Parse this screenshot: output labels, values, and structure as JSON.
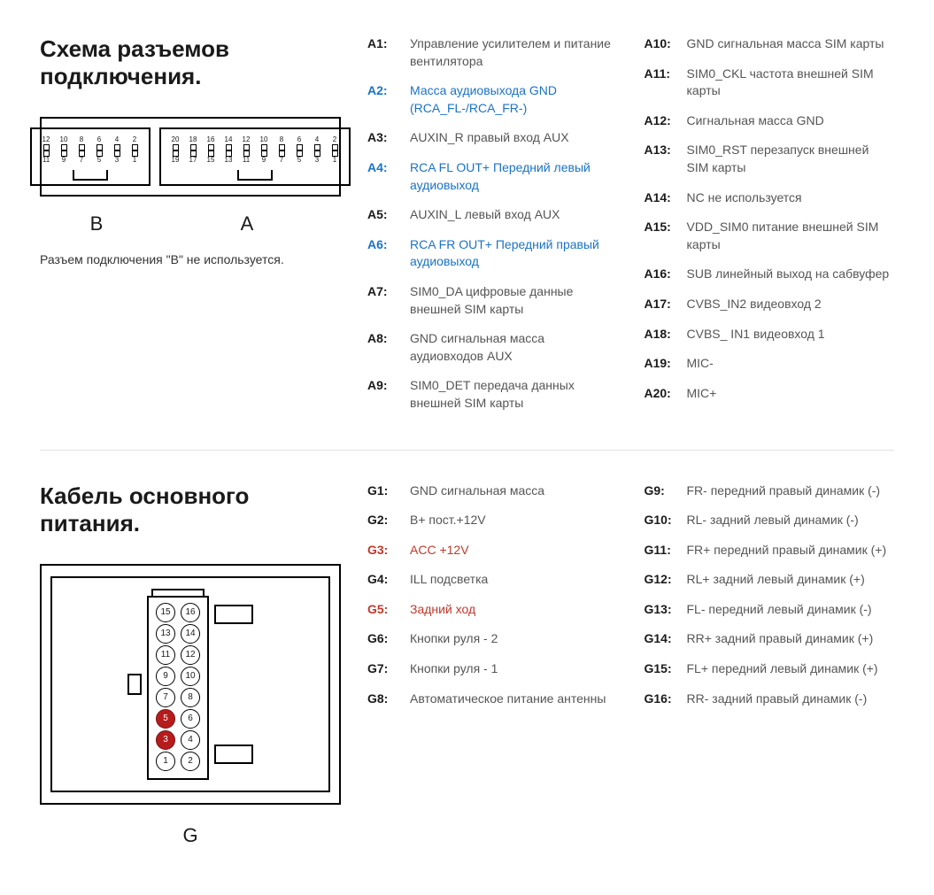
{
  "section1": {
    "title": "Схема разъемов подключения.",
    "connectorB": {
      "label": "B",
      "row_top": [
        "12",
        "10",
        "8",
        "6",
        "4",
        "2"
      ],
      "row_bottom": [
        "11",
        "9",
        "7",
        "5",
        "3",
        "1"
      ]
    },
    "connectorA": {
      "label": "A",
      "row_top": [
        "20",
        "18",
        "16",
        "14",
        "12",
        "10",
        "8",
        "6",
        "4",
        "2"
      ],
      "row_bottom": [
        "19",
        "17",
        "15",
        "13",
        "11",
        "9",
        "7",
        "5",
        "3",
        "1"
      ]
    },
    "note": "Разъем подключения \"B\" не используется.",
    "pins_col1": [
      {
        "k": "A1:",
        "d": "Управление усилителем и питание вентилятора",
        "c": ""
      },
      {
        "k": "A2:",
        "d": "Масса аудиовыхода GND (RCA_FL-/RCA_FR-)",
        "c": "blue"
      },
      {
        "k": "A3:",
        "d": "AUXIN_R правый вход AUX",
        "c": ""
      },
      {
        "k": "A4:",
        "d": "RCA FL OUT+  Передний левый аудиовыход",
        "c": "blue"
      },
      {
        "k": "A5:",
        "d": "AUXIN_L левый вход AUX",
        "c": ""
      },
      {
        "k": "A6:",
        "d": "RCA FR OUT+  Передний правый аудиовыход",
        "c": "blue"
      },
      {
        "k": "A7:",
        "d": "SIM0_DA цифровые данные внешней SIM карты",
        "c": ""
      },
      {
        "k": "A8:",
        "d": "GND сигнальная масса аудиовходов AUX",
        "c": ""
      },
      {
        "k": "A9:",
        "d": "SIM0_DET передача данных внешней SIM карты",
        "c": ""
      }
    ],
    "pins_col2": [
      {
        "k": "A10:",
        "d": "GND сигнальная масса SIM карты",
        "c": ""
      },
      {
        "k": "A11:",
        "d": "SIM0_CKL частота внешней SIM карты",
        "c": ""
      },
      {
        "k": "A12:",
        "d": "Сигнальная масса GND",
        "c": ""
      },
      {
        "k": "A13:",
        "d": "SIM0_RST перезапуск внешней SIM карты",
        "c": ""
      },
      {
        "k": "A14:",
        "d": "NC  не используется",
        "c": ""
      },
      {
        "k": "A15:",
        "d": "VDD_SIM0 питание внешней SIM карты",
        "c": ""
      },
      {
        "k": "A16:",
        "d": "SUB линейный выход на сабвуфер",
        "c": ""
      },
      {
        "k": "A17:",
        "d": "CVBS_IN2 видеовход 2",
        "c": ""
      },
      {
        "k": "A18:",
        "d": "CVBS_ IN1 видеовход 1",
        "c": ""
      },
      {
        "k": "A19:",
        "d": "MIC-",
        "c": ""
      },
      {
        "k": "A20:",
        "d": "MIC+",
        "c": ""
      }
    ]
  },
  "section2": {
    "title": "Кабель основного питания.",
    "connectorG": {
      "label": "G",
      "rows": [
        [
          {
            "n": "15",
            "hl": false
          },
          {
            "n": "16",
            "hl": false
          }
        ],
        [
          {
            "n": "13",
            "hl": false
          },
          {
            "n": "14",
            "hl": false
          }
        ],
        [
          {
            "n": "11",
            "hl": false
          },
          {
            "n": "12",
            "hl": false
          }
        ],
        [
          {
            "n": "9",
            "hl": false
          },
          {
            "n": "10",
            "hl": false
          }
        ],
        [
          {
            "n": "7",
            "hl": false
          },
          {
            "n": "8",
            "hl": false
          }
        ],
        [
          {
            "n": "5",
            "hl": true
          },
          {
            "n": "6",
            "hl": false
          }
        ],
        [
          {
            "n": "3",
            "hl": true
          },
          {
            "n": "4",
            "hl": false
          }
        ],
        [
          {
            "n": "1",
            "hl": false
          },
          {
            "n": "2",
            "hl": false
          }
        ]
      ]
    },
    "pins_col1": [
      {
        "k": "G1:",
        "d": "GND сигнальная масса",
        "c": ""
      },
      {
        "k": "G2:",
        "d": "B+ пост.+12V",
        "c": ""
      },
      {
        "k": "G3:",
        "d": "ACC +12V",
        "c": "red"
      },
      {
        "k": "G4:",
        "d": "ILL подсветка",
        "c": ""
      },
      {
        "k": "G5:",
        "d": "Задний ход",
        "c": "red"
      },
      {
        "k": "G6:",
        "d": "Кнопки руля - 2",
        "c": ""
      },
      {
        "k": "G7:",
        "d": "Кнопки руля - 1",
        "c": ""
      },
      {
        "k": "G8:",
        "d": "Автоматическое питание антенны",
        "c": ""
      }
    ],
    "pins_col2": [
      {
        "k": "G9:",
        "d": "FR- передний правый динамик (-)",
        "c": ""
      },
      {
        "k": "G10:",
        "d": "RL- задний левый динамик (-)",
        "c": ""
      },
      {
        "k": "G11:",
        "d": "FR+ передний правый динамик (+)",
        "c": ""
      },
      {
        "k": "G12:",
        "d": "RL+ задний левый динамик (+)",
        "c": ""
      },
      {
        "k": "G13:",
        "d": "FL- передний левый динамик (-)",
        "c": ""
      },
      {
        "k": "G14:",
        "d": "RR+ задний правый динамик (+)",
        "c": ""
      },
      {
        "k": "G15:",
        "d": "FL+ передний левый динамик (+)",
        "c": ""
      },
      {
        "k": "G16:",
        "d": "RR- задний правый динамик (-)",
        "c": ""
      }
    ]
  },
  "colors": {
    "text": "#1a1a1a",
    "muted": "#555555",
    "blue": "#1a73c7",
    "red": "#c0392b",
    "highlight_pin": "#b71c1c",
    "separator": "#e0e0e0"
  }
}
